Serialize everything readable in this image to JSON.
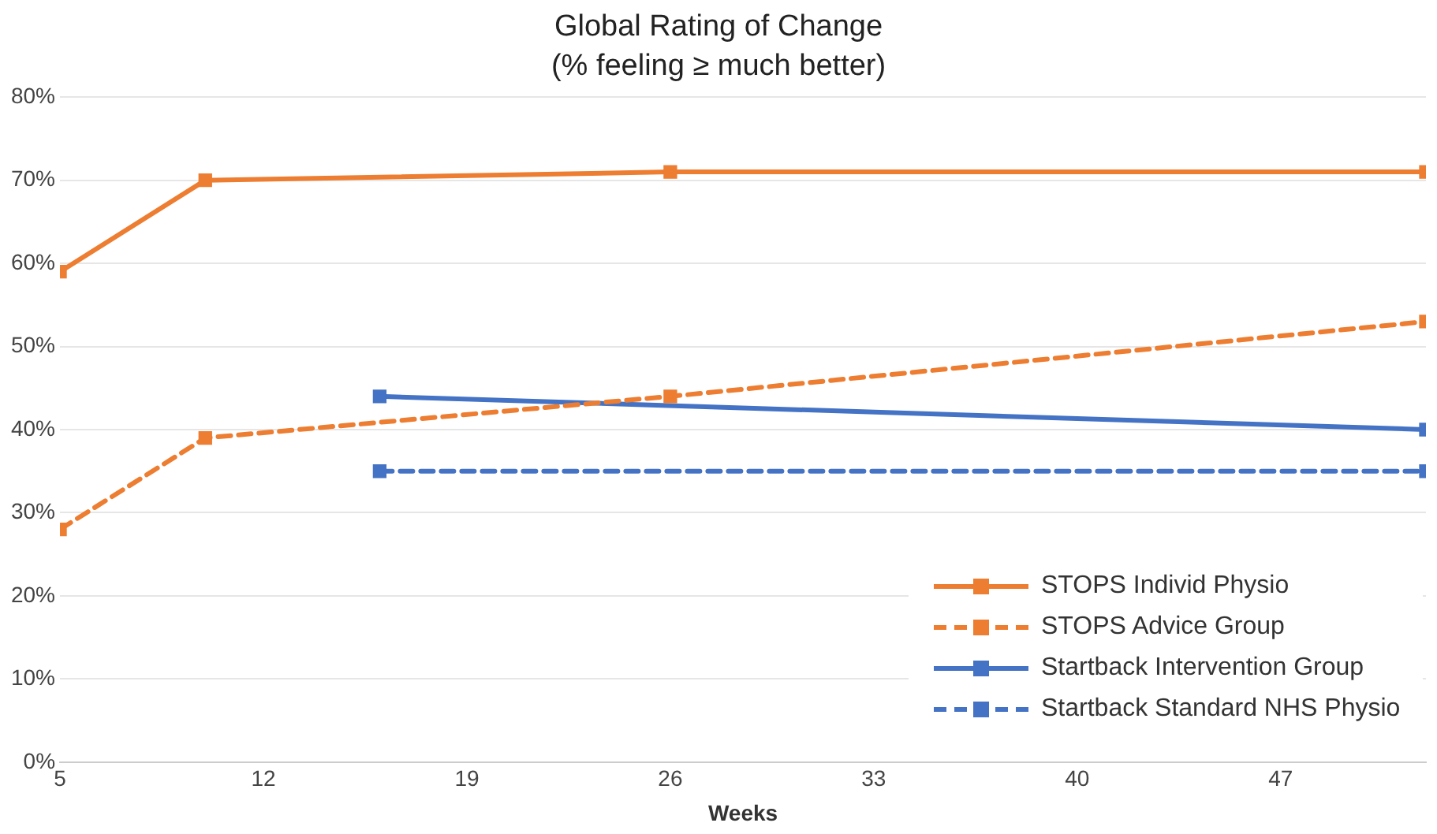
{
  "chart_data": {
    "type": "line",
    "title": "Global Rating of Change",
    "subtitle": "(% feeling ≥ much better)",
    "xlabel": "Weeks",
    "xlim": [
      5,
      52
    ],
    "xticks": [
      5,
      12,
      19,
      26,
      33,
      40,
      47
    ],
    "ylim": [
      0,
      80
    ],
    "yticks": [
      {
        "value": 0,
        "label": "0%"
      },
      {
        "value": 10,
        "label": "10%"
      },
      {
        "value": 20,
        "label": "20%"
      },
      {
        "value": 30,
        "label": "30%"
      },
      {
        "value": 40,
        "label": "40%"
      },
      {
        "value": 50,
        "label": "50%"
      },
      {
        "value": 60,
        "label": "60%"
      },
      {
        "value": 70,
        "label": "70%"
      },
      {
        "value": 80,
        "label": "80%"
      }
    ],
    "grid": "y",
    "legend": "bottom right",
    "marker": "square",
    "series": [
      {
        "name": "STOPS Individ Physio",
        "color": "#ed7d31",
        "line_style": "solid",
        "x": [
          5,
          10,
          26,
          52
        ],
        "values": [
          59,
          70,
          71,
          71
        ]
      },
      {
        "name": "STOPS Advice Group",
        "color": "#ed7d31",
        "line_style": "dashed",
        "x": [
          5,
          10,
          26,
          52
        ],
        "values": [
          28,
          39,
          44,
          53
        ]
      },
      {
        "name": "Startback Intervention Group",
        "color": "#4472c4",
        "line_style": "solid",
        "x": [
          16,
          52
        ],
        "values": [
          44,
          40
        ]
      },
      {
        "name": "Startback Standard NHS Physio",
        "color": "#4472c4",
        "line_style": "dashed",
        "x": [
          16,
          52
        ],
        "values": [
          35,
          35
        ]
      }
    ]
  }
}
